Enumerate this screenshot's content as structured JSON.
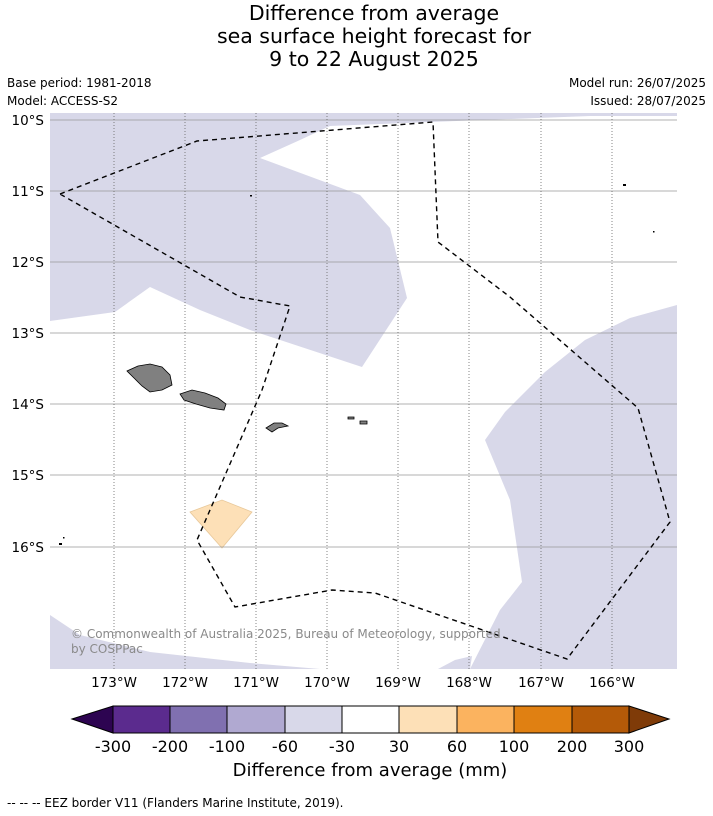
{
  "title": {
    "line1": "Difference from average",
    "line2": "sea surface height forecast for",
    "line3": "9 to 22 August 2025"
  },
  "meta": {
    "base_period": "Base period: 1981-2018",
    "model": "Model: ACCESS-S2",
    "model_run": "Model run: 26/07/2025",
    "issued": "Issued: 28/07/2025"
  },
  "map": {
    "lat_labels": [
      "10°S",
      "11°S",
      "12°S",
      "13°S",
      "14°S",
      "15°S",
      "16°S"
    ],
    "lon_labels": [
      "173°W",
      "172°W",
      "171°W",
      "170°W",
      "169°W",
      "168°W",
      "167°W",
      "166°W"
    ],
    "copyright_line1": "© Commonwealth of Australia 2025, Bureau of Meteorology, supported",
    "copyright_line2": "by COSPPac",
    "colors": {
      "land": "#808080",
      "band_-60_-30": "#d8d8e9",
      "band_30_60": "#fde0b7",
      "gridline": "#999999",
      "eez_border": "#000000"
    }
  },
  "colorbar": {
    "ticks": [
      "-300",
      "-200",
      "-100",
      "-60",
      "-30",
      "30",
      "60",
      "100",
      "200",
      "300"
    ],
    "colors": [
      "#2d0451",
      "#5b2b8e",
      "#8070b0",
      "#b0a9d1",
      "#d8d8e9",
      "#ffffff",
      "#fde0b7",
      "#fbb35f",
      "#e08012",
      "#b45a08",
      "#7f3b08"
    ],
    "title": "Difference from average (mm)"
  },
  "footnote": "--  --  -- EEZ border V11 (Flanders Marine Institute, 2019)."
}
